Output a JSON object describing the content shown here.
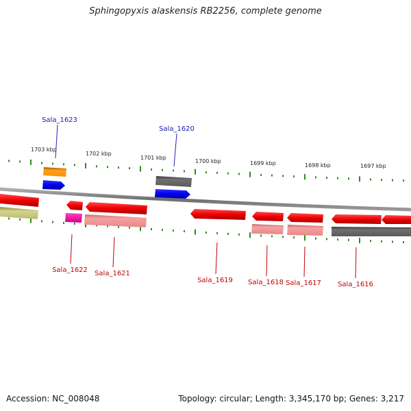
{
  "title": "Sphingopyxis alaskensis RB2256, complete genome",
  "footer": {
    "accession": "Accession: NC_008048",
    "summary": "Topology: circular; Length: 3,345,170 bp; Genes: 3,217"
  },
  "colors": {
    "plus_gene_label": "#1a1aa8",
    "minus_gene_label": "#c00000",
    "tick": "#2e8b1e",
    "backbone": "#808080"
  },
  "scale_ticks": [
    {
      "label": "1703 kbp"
    },
    {
      "label": "1702 kbp"
    },
    {
      "label": "1701 kbp"
    },
    {
      "label": "1700 kbp"
    },
    {
      "label": "1699 kbp"
    },
    {
      "label": "1698 kbp"
    },
    {
      "label": "1697 kbp"
    }
  ],
  "gene_labels": [
    {
      "text": "Sala_1623",
      "strand": "plus"
    },
    {
      "text": "Sala_1620",
      "strand": "plus"
    },
    {
      "text": "Sala_1622",
      "strand": "minus"
    },
    {
      "text": "Sala_1621",
      "strand": "minus"
    },
    {
      "text": "Sala_1619",
      "strand": "minus"
    },
    {
      "text": "Sala_1618",
      "strand": "minus"
    },
    {
      "text": "Sala_1617",
      "strand": "minus"
    },
    {
      "text": "Sala_1616",
      "strand": "minus"
    }
  ]
}
